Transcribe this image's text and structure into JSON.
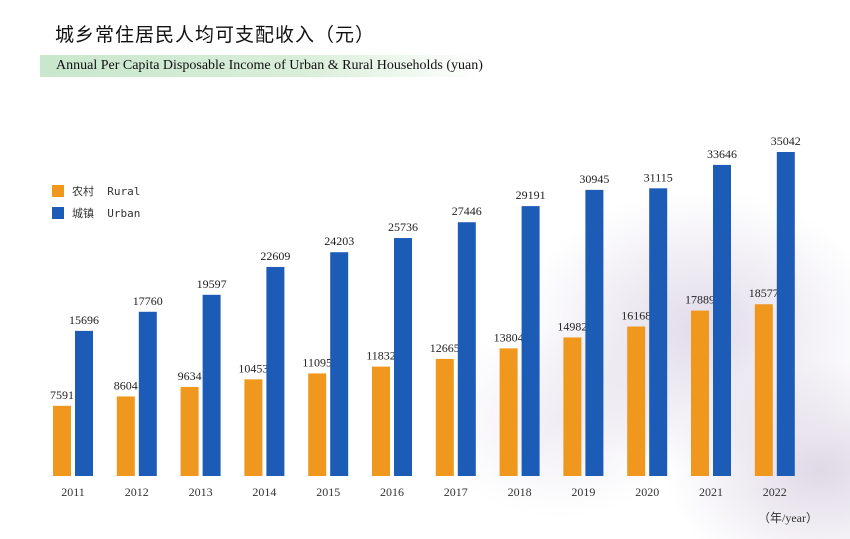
{
  "title_cn": "城乡常住居民人均可支配收入（元）",
  "title_en": "Annual Per Capita Disposable Income of Urban & Rural Households (yuan)",
  "unit_label": "（年/year）",
  "legend": [
    {
      "label": "农村  Rural",
      "color": "#f0971e"
    },
    {
      "label": "城镇  Urban",
      "color": "#1c5cb6"
    }
  ],
  "chart_data": {
    "type": "bar",
    "categories": [
      "2011",
      "2012",
      "2013",
      "2014",
      "2015",
      "2016",
      "2017",
      "2018",
      "2019",
      "2020",
      "2021",
      "2022"
    ],
    "series": [
      {
        "name": "农村 Rural",
        "color": "#f0971e",
        "values": [
          7591,
          8604,
          9634,
          10453,
          11095,
          11832,
          12665,
          13804,
          14982,
          16168,
          17889,
          18577
        ]
      },
      {
        "name": "城镇 Urban",
        "color": "#1c5cb6",
        "values": [
          15696,
          17760,
          19597,
          22609,
          24203,
          25736,
          27446,
          29191,
          30945,
          31115,
          33646,
          35042
        ]
      }
    ],
    "title": "城乡常住居民人均可支配收入（元）",
    "xlabel": "（年/year）",
    "ylabel": "",
    "ylim": [
      0,
      35042
    ],
    "grid": false,
    "legend_position": "top-left"
  }
}
